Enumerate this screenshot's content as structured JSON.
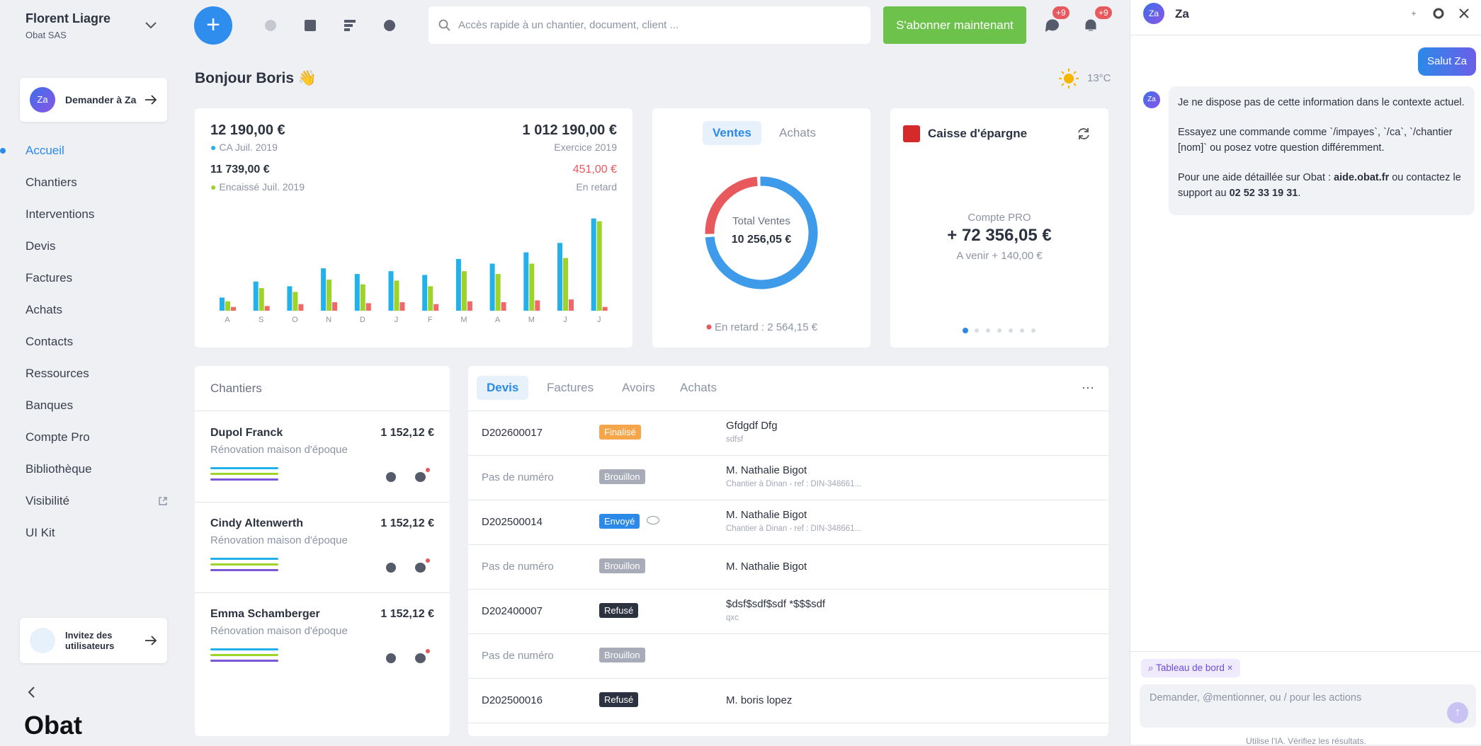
{
  "sidebar": {
    "user_name": "Florent Liagre",
    "company": "Obat SAS",
    "ask_avatar": "Za",
    "ask_label": "Demander à Za",
    "nav": [
      "Accueil",
      "Chantiers",
      "Interventions",
      "Devis",
      "Factures",
      "Achats",
      "Contacts",
      "Ressources",
      "Banques",
      "Compte Pro",
      "Bibliothèque",
      "Visibilité",
      "UI Kit"
    ],
    "invite_label": "Invitez des utilisateurs",
    "logo": "Obat"
  },
  "topbar": {
    "search_placeholder": "Accès rapide à un chantier, document, client ...",
    "subscribe_button": "S'abonner maintenant",
    "messages_badge": "+9",
    "notifications_badge": "+9"
  },
  "dashboard": {
    "greeting": "Bonjour Boris 👋",
    "weather": "13°C",
    "revenue": {
      "ca_amount": "12 190,00 €",
      "ca_label": "CA Juil. 2019",
      "exercise_amount": "1 012 190,00 €",
      "exercise_label": "Exercice 2019",
      "paid_amount": "11 739,00 €",
      "paid_label": "Encaissé Juil. 2019",
      "late_amount": "451,00 €",
      "late_label": "En retard"
    },
    "sales_tabs": [
      "Ventes",
      "Achats"
    ],
    "bank": {
      "name": "Caisse d'épargne",
      "account": "Compte PRO",
      "balance": "+ 72 356,05 €",
      "upcoming": "A venir + 140,00 €"
    },
    "projects": {
      "title": "Chantiers",
      "items": [
        {
          "name": "Dupol Franck",
          "amount": "1 152,12 €",
          "description": "Rénovation maison d'époque"
        },
        {
          "name": "Cindy Altenwerth",
          "amount": "1 152,12 €",
          "description": "Rénovation maison d'époque"
        },
        {
          "name": "Emma Schamberger",
          "amount": "1 152,12 €",
          "description": "Rénovation maison d'époque"
        }
      ]
    },
    "documents": {
      "tabs": [
        "Devis",
        "Factures",
        "Avoirs",
        "Achats"
      ],
      "rows": [
        {
          "number": "D202600017",
          "status": "Finalisé",
          "status_color": "#f5a64a",
          "client": "Gfdgdf Dfg",
          "detail": "sdfsf"
        },
        {
          "number": "Pas de numéro",
          "status": "Brouillon",
          "status_color": "#a8abb8",
          "client": "M. Nathalie Bigot",
          "detail": "Chantier à Dinan - ref : DIN-348661..."
        },
        {
          "number": "D202500014",
          "status": "Envoyé",
          "status_color": "#2b8ae8",
          "client": "M. Nathalie Bigot",
          "detail": "Chantier à Dinan - ref : DIN-348661..."
        },
        {
          "number": "Pas de numéro",
          "status": "Brouillon",
          "status_color": "#a8abb8",
          "client": "M. Nathalie Bigot"
        },
        {
          "number": "D202400007",
          "status": "Refusé",
          "status_color": "#2d3240",
          "client": "$dsf$sdf$sdf *$$$sdf",
          "detail": "qxc"
        },
        {
          "number": "Pas de numéro",
          "status": "Brouillon",
          "status_color": "#a8abb8"
        },
        {
          "number": "D202500016",
          "status": "Refusé",
          "status_color": "#2d3240",
          "client": "M. boris lopez"
        }
      ]
    }
  },
  "chart_data": [
    {
      "type": "bar",
      "categories": [
        "A",
        "S",
        "O",
        "N",
        "D",
        "J",
        "F",
        "M",
        "A",
        "M",
        "J",
        "J"
      ],
      "ylim": [
        0,
        100
      ],
      "series": [
        {
          "color": "#22b1ea",
          "values": [
            14,
            31,
            26,
            45,
            39,
            42,
            38,
            55,
            50,
            62,
            72,
            98
          ]
        },
        {
          "color": "#9ed329",
          "values": [
            10,
            24,
            20,
            33,
            28,
            32,
            26,
            42,
            39,
            50,
            56,
            95
          ]
        },
        {
          "color": "#ee6a6a",
          "values": [
            4,
            5,
            7,
            9,
            8,
            9,
            7,
            10,
            9,
            11,
            12,
            4
          ]
        }
      ]
    },
    {
      "type": "donut",
      "center_label": "Total Ventes",
      "colors": [
        "#e8595e",
        "#3d9be9"
      ],
      "total": {
        "value": 10256.05,
        "label": "10 256,05 €"
      },
      "late": {
        "value": 2564.15,
        "label": "En retard : 2 564,15 €"
      }
    }
  ],
  "chat": {
    "avatar": "Za",
    "title": "Za",
    "user_message": "Salut Za",
    "bot_message": [
      "Je ne dispose pas de cette information dans le contexte actuel.",
      "Essayez une commande comme `/impayes`, `/ca`, `/chantier [nom]` ou posez votre question différemment.",
      [
        "Pour une aide détaillée sur Obat : ",
        "aide.obat.fr",
        " ou contactez le support au ",
        "02 52 33 19 31",
        "."
      ]
    ],
    "context_chip": "Tableau de bord",
    "input_placeholder": "Demander, @mentionner, ou / pour les actions",
    "footer": "Utilise l'IA. Vérifiez les résultats."
  }
}
